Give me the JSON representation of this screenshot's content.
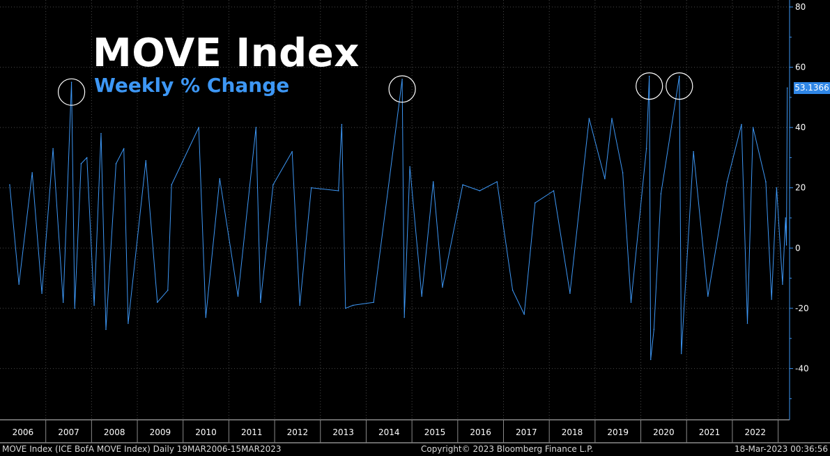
{
  "title": "MOVE Index",
  "subtitle": "Weekly % Change",
  "footer": {
    "left": "MOVE Index (ICE BofA MOVE Index)  Daily 19MAR2006-15MAR2023",
    "center": "Copyright© 2023 Bloomberg Finance L.P.",
    "right": "18-Mar-2023 00:36:56"
  },
  "colors": {
    "background": "#000000",
    "line": "#3d97f5",
    "grid": "#4a4a4a",
    "axis": "#3d97f5",
    "title": "#ffffff",
    "subtitle": "#3d97f5"
  },
  "chart_data": {
    "type": "line",
    "title": "MOVE Index",
    "subtitle": "Weekly % Change",
    "xlabel": "",
    "ylabel": "",
    "ylim": [
      -57,
      80
    ],
    "yticks": [
      80,
      60,
      40,
      20,
      0,
      -20,
      -40
    ],
    "y_axis_side": "right",
    "grid": true,
    "x_range": [
      "2006-03-19",
      "2023-03-15"
    ],
    "x_ticks": [
      "2006",
      "2007",
      "2008",
      "2009",
      "2010",
      "2011",
      "2012",
      "2013",
      "2014",
      "2015",
      "2016",
      "2017",
      "2018",
      "2019",
      "2020",
      "2021",
      "2022"
    ],
    "last_value_label": "53.1366",
    "series": [
      {
        "values": [
          {
            "x": "2006-03-19",
            "y": 21
          },
          {
            "x": "2006-06-01",
            "y": -12
          },
          {
            "x": "2006-09-15",
            "y": 25
          },
          {
            "x": "2006-12-01",
            "y": -15
          },
          {
            "x": "2007-02-28",
            "y": 33
          },
          {
            "x": "2007-05-20",
            "y": -18
          },
          {
            "x": "2007-07-25",
            "y": 55
          },
          {
            "x": "2007-08-20",
            "y": -20
          },
          {
            "x": "2007-10-10",
            "y": 28
          },
          {
            "x": "2007-11-25",
            "y": 30
          },
          {
            "x": "2008-01-22",
            "y": -19
          },
          {
            "x": "2008-03-17",
            "y": 38
          },
          {
            "x": "2008-04-25",
            "y": -27
          },
          {
            "x": "2008-07-15",
            "y": 28
          },
          {
            "x": "2008-09-15",
            "y": 33
          },
          {
            "x": "2008-10-20",
            "y": -25
          },
          {
            "x": "2009-03-10",
            "y": 29
          },
          {
            "x": "2009-06-10",
            "y": -18
          },
          {
            "x": "2009-09-01",
            "y": -14
          },
          {
            "x": "2009-10-01",
            "y": 21
          },
          {
            "x": "2010-05-06",
            "y": 40
          },
          {
            "x": "2010-07-01",
            "y": -23
          },
          {
            "x": "2010-10-20",
            "y": 23
          },
          {
            "x": "2011-03-15",
            "y": -16
          },
          {
            "x": "2011-08-05",
            "y": 40
          },
          {
            "x": "2011-09-10",
            "y": -18
          },
          {
            "x": "2011-12-20",
            "y": 21
          },
          {
            "x": "2012-05-20",
            "y": 32
          },
          {
            "x": "2012-07-20",
            "y": -19
          },
          {
            "x": "2012-10-20",
            "y": 20
          },
          {
            "x": "2013-05-25",
            "y": 19
          },
          {
            "x": "2013-06-20",
            "y": 41
          },
          {
            "x": "2013-07-20",
            "y": -20
          },
          {
            "x": "2013-09-18",
            "y": -19
          },
          {
            "x": "2014-03-01",
            "y": -18
          },
          {
            "x": "2014-10-15",
            "y": 56
          },
          {
            "x": "2014-11-01",
            "y": -23
          },
          {
            "x": "2014-12-15",
            "y": 27
          },
          {
            "x": "2015-03-20",
            "y": -16
          },
          {
            "x": "2015-06-20",
            "y": 22
          },
          {
            "x": "2015-09-01",
            "y": -13
          },
          {
            "x": "2016-02-10",
            "y": 21
          },
          {
            "x": "2016-06-25",
            "y": 19
          },
          {
            "x": "2016-11-10",
            "y": 22
          },
          {
            "x": "2017-03-15",
            "y": -14
          },
          {
            "x": "2017-06-15",
            "y": -22
          },
          {
            "x": "2017-09-10",
            "y": 15
          },
          {
            "x": "2018-02-05",
            "y": 19
          },
          {
            "x": "2018-06-15",
            "y": -15
          },
          {
            "x": "2018-11-15",
            "y": 43
          },
          {
            "x": "2019-03-20",
            "y": 23
          },
          {
            "x": "2019-05-15",
            "y": 43
          },
          {
            "x": "2019-08-10",
            "y": 25
          },
          {
            "x": "2019-10-15",
            "y": -18
          },
          {
            "x": "2020-02-15",
            "y": 33
          },
          {
            "x": "2020-03-09",
            "y": 57
          },
          {
            "x": "2020-03-20",
            "y": -37
          },
          {
            "x": "2020-04-15",
            "y": -27
          },
          {
            "x": "2020-06-10",
            "y": 18
          },
          {
            "x": "2020-11-04",
            "y": 57
          },
          {
            "x": "2020-11-20",
            "y": -35
          },
          {
            "x": "2021-02-25",
            "y": 32
          },
          {
            "x": "2021-06-20",
            "y": -16
          },
          {
            "x": "2021-11-20",
            "y": 22
          },
          {
            "x": "2022-03-15",
            "y": 41
          },
          {
            "x": "2022-05-01",
            "y": -25
          },
          {
            "x": "2022-06-15",
            "y": 40
          },
          {
            "x": "2022-09-25",
            "y": 22
          },
          {
            "x": "2022-11-10",
            "y": -17
          },
          {
            "x": "2022-12-20",
            "y": 20
          },
          {
            "x": "2023-02-05",
            "y": -12
          },
          {
            "x": "2023-03-01",
            "y": 10
          },
          {
            "x": "2023-03-08",
            "y": 1
          },
          {
            "x": "2023-03-15",
            "y": 53.1366
          }
        ]
      }
    ],
    "highlighted_spikes": [
      {
        "x": "2007-07-25",
        "y": 55
      },
      {
        "x": "2014-10-15",
        "y": 56
      },
      {
        "x": "2020-03-09",
        "y": 57
      },
      {
        "x": "2020-11-04",
        "y": 57
      }
    ]
  }
}
